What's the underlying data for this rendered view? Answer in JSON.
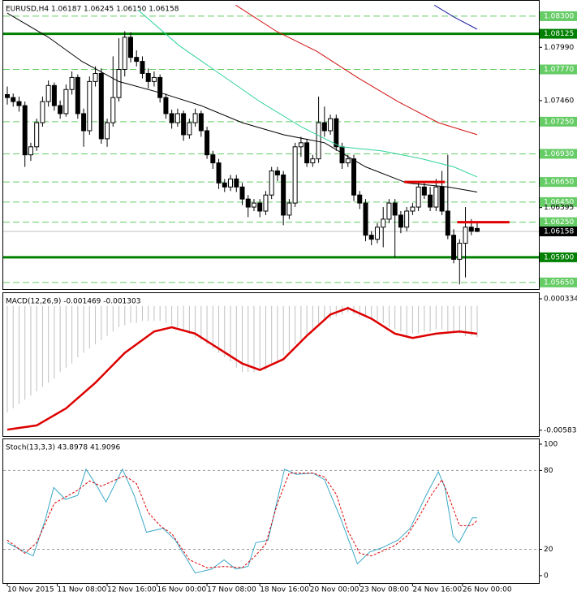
{
  "chart_data": [
    {
      "type": "candlestick",
      "title": "EURUSD,H4  1.06187 1.06245 1.06150 1.06158",
      "xlim": [
        -0.69,
        90.5
      ],
      "ylim": [
        1.05584,
        1.08453
      ],
      "candles": [
        [
          1.0752,
          1.076,
          1.0742,
          1.0749
        ],
        [
          1.0749,
          1.0753,
          1.074,
          1.0745
        ],
        [
          1.0745,
          1.075,
          1.0735,
          1.0741
        ],
        [
          1.0741,
          1.0745,
          1.068,
          1.0692
        ],
        [
          1.0692,
          1.0704,
          1.0686,
          1.07
        ],
        [
          1.07,
          1.0728,
          1.0696,
          1.0724
        ],
        [
          1.0724,
          1.075,
          1.072,
          1.0745
        ],
        [
          1.0745,
          1.0766,
          1.074,
          1.0761
        ],
        [
          1.0761,
          1.0764,
          1.0736,
          1.0741
        ],
        [
          1.0741,
          1.0746,
          1.0728,
          1.0733
        ],
        [
          1.0733,
          1.0762,
          1.073,
          1.0757
        ],
        [
          1.0757,
          1.0775,
          1.0752,
          1.0769
        ],
        [
          1.0769,
          1.0772,
          1.0728,
          1.0733
        ],
        [
          1.0733,
          1.0738,
          1.07,
          1.0716
        ],
        [
          1.0716,
          1.077,
          1.0712,
          1.0765
        ],
        [
          1.0765,
          1.078,
          1.076,
          1.0773
        ],
        [
          1.0773,
          1.0778,
          1.0703,
          1.0708
        ],
        [
          1.0708,
          1.0728,
          1.07,
          1.0724
        ],
        [
          1.0724,
          1.079,
          1.072,
          1.0749
        ],
        [
          1.0749,
          1.0808,
          1.0745,
          1.0777
        ],
        [
          1.0777,
          1.0815,
          1.077,
          1.0809
        ],
        [
          1.0809,
          1.0814,
          1.0784,
          1.0789
        ],
        [
          1.0789,
          1.0796,
          1.078,
          1.0785
        ],
        [
          1.0785,
          1.079,
          1.0768,
          1.0773
        ],
        [
          1.0773,
          1.0778,
          1.0758,
          1.0765
        ],
        [
          1.0765,
          1.0775,
          1.076,
          1.0769
        ],
        [
          1.0769,
          1.0772,
          1.0744,
          1.0749
        ],
        [
          1.0749,
          1.0753,
          1.0728,
          1.0733
        ],
        [
          1.0733,
          1.0737,
          1.0718,
          1.0724
        ],
        [
          1.0724,
          1.0738,
          1.072,
          1.0733
        ],
        [
          1.0733,
          1.0736,
          1.0706,
          1.0712
        ],
        [
          1.0712,
          1.0728,
          1.0708,
          1.0724
        ],
        [
          1.0724,
          1.0738,
          1.072,
          1.0733
        ],
        [
          1.0733,
          1.0736,
          1.071,
          1.0716
        ],
        [
          1.0716,
          1.072,
          1.0688,
          1.0692
        ],
        [
          1.0692,
          1.0696,
          1.0678,
          1.0684
        ],
        [
          1.0684,
          1.0688,
          1.0658,
          1.0664
        ],
        [
          1.0664,
          1.0668,
          1.0655,
          1.066
        ],
        [
          1.066,
          1.0672,
          1.0656,
          1.0668
        ],
        [
          1.0668,
          1.0672,
          1.0655,
          1.066
        ],
        [
          1.066,
          1.0664,
          1.0642,
          1.0648
        ],
        [
          1.0648,
          1.0652,
          1.063,
          1.064
        ],
        [
          1.064,
          1.0648,
          1.0636,
          1.0644
        ],
        [
          1.0644,
          1.0648,
          1.063,
          1.0636
        ],
        [
          1.0636,
          1.0656,
          1.0632,
          1.0652
        ],
        [
          1.0652,
          1.068,
          1.0648,
          1.0676
        ],
        [
          1.0676,
          1.068,
          1.0666,
          1.0672
        ],
        [
          1.0672,
          1.0676,
          1.0622,
          1.0632
        ],
        [
          1.0632,
          1.0648,
          1.0628,
          1.0644
        ],
        [
          1.0644,
          1.0704,
          1.064,
          1.07
        ],
        [
          1.07,
          1.071,
          1.069,
          1.0704
        ],
        [
          1.0704,
          1.0708,
          1.068,
          1.0684
        ],
        [
          1.0684,
          1.0692,
          1.068,
          1.0688
        ],
        [
          1.0688,
          1.075,
          1.0684,
          1.0724
        ],
        [
          1.0724,
          1.074,
          1.071,
          1.0716
        ],
        [
          1.0716,
          1.0732,
          1.0712,
          1.0728
        ],
        [
          1.0728,
          1.0732,
          1.0696,
          1.07
        ],
        [
          1.07,
          1.0704,
          1.0678,
          1.0684
        ],
        [
          1.0684,
          1.0692,
          1.068,
          1.0688
        ],
        [
          1.0688,
          1.0692,
          1.0646,
          1.0652
        ],
        [
          1.0652,
          1.0656,
          1.0638,
          1.0644
        ],
        [
          1.0644,
          1.0648,
          1.0606,
          1.0612
        ],
        [
          1.0612,
          1.0616,
          1.0602,
          1.0608
        ],
        [
          1.0608,
          1.0624,
          1.0604,
          1.062
        ],
        [
          1.062,
          1.064,
          1.06,
          1.0628
        ],
        [
          1.0628,
          1.0648,
          1.0624,
          1.0644
        ],
        [
          1.0644,
          1.0648,
          1.059,
          1.0632
        ],
        [
          1.0632,
          1.0636,
          1.0614,
          1.062
        ],
        [
          1.062,
          1.064,
          1.0616,
          1.0636
        ],
        [
          1.0636,
          1.0644,
          1.0632,
          1.064
        ],
        [
          1.064,
          1.0664,
          1.0636,
          1.066
        ],
        [
          1.066,
          1.0666,
          1.0648,
          1.0652
        ],
        [
          1.0652,
          1.066,
          1.0636,
          1.064
        ],
        [
          1.064,
          1.0668,
          1.0636,
          1.066
        ],
        [
          1.066,
          1.0676,
          1.0632,
          1.0636
        ],
        [
          1.0636,
          1.0692,
          1.0608,
          1.0612
        ],
        [
          1.0612,
          1.0618,
          1.0584,
          1.0588
        ],
        [
          1.0588,
          1.0608,
          1.0563,
          1.0604
        ],
        [
          1.0604,
          1.064,
          1.057,
          1.062
        ],
        [
          1.062,
          1.0628,
          1.0612,
          1.0616
        ],
        [
          1.06187,
          1.06245,
          1.0615,
          1.06158
        ]
      ],
      "series": [
        {
          "type": "line",
          "color": "#000000",
          "x": [
            0,
            7,
            12.7,
            19,
            26.5,
            33,
            40,
            47,
            54,
            61,
            68,
            75,
            80
          ],
          "y": [
            1.0833,
            1.0809,
            1.0785,
            1.0765,
            1.0753,
            1.0741,
            1.0724,
            1.0712,
            1.0704,
            1.068,
            1.0664,
            1.066,
            1.0655
          ]
        },
        {
          "type": "line",
          "color": "#2fd39a",
          "x": [
            22.3,
            29.2,
            36.1,
            43,
            50,
            56.8,
            63.7,
            70.6,
            76,
            80
          ],
          "y": [
            1.0836,
            1.0801,
            1.0773,
            1.0745,
            1.072,
            1.07,
            1.0696,
            1.0688,
            1.068,
            1.067
          ]
        },
        {
          "type": "line",
          "color": "#d01010",
          "x": [
            38.9,
            45.8,
            52.7,
            59.6,
            66.5,
            73.4,
            80
          ],
          "y": [
            1.0841,
            1.0815,
            1.0795,
            1.0769,
            1.0745,
            1.0724,
            1.0712
          ]
        },
        {
          "type": "line",
          "color": "#1a1aa0",
          "x": [
            72.7,
            76.1,
            80
          ],
          "y": [
            1.0841,
            1.0829,
            1.0817
          ]
        }
      ],
      "segments": [
        {
          "color": "#e00000",
          "value": 1.0665,
          "x": [
            67.6,
            74.5
          ]
        },
        {
          "color": "#e00000",
          "value": 1.0625,
          "x": [
            76.6,
            85.5
          ]
        }
      ],
      "yticks": [
        {
          "value": 1.0799,
          "label": "1.07990"
        },
        {
          "value": 1.0746,
          "label": "1.07460"
        },
        1.06395
      ],
      "levels": [
        {
          "value": 1.083,
          "label": "1.08300",
          "style": "dashed",
          "color": "#66cc66"
        },
        {
          "value": 1.08125,
          "label": "1.08125",
          "style": "thick",
          "color": "#008000"
        },
        {
          "value": 1.0777,
          "label": "1.07770",
          "style": "dashed",
          "color": "#66cc66"
        },
        {
          "value": 1.0725,
          "label": "1.07250",
          "style": "dashed",
          "color": "#66cc66"
        },
        {
          "value": 1.0693,
          "label": "1.06930",
          "style": "dashed",
          "color": "#66cc66"
        },
        {
          "value": 1.0665,
          "label": "1.06650",
          "style": "dashed",
          "color": "#66cc66"
        },
        {
          "value": 1.0645,
          "label": "1.06450",
          "style": "dashed",
          "color": "#66cc66"
        },
        {
          "value": 1.0625,
          "label": "1.06250",
          "style": "dashed",
          "color": "#66cc66"
        },
        {
          "value": 1.059,
          "label": "1.05900",
          "style": "thick",
          "color": "#008000"
        },
        {
          "value": 1.0565,
          "label": "1.05650",
          "style": "dashed",
          "color": "#66cc66"
        }
      ],
      "current": 1.06158
    },
    {
      "type": "bar",
      "title": "MACD(12,26,9) -0.001469 -0.001303",
      "xlim": [
        -0.69,
        90.5
      ],
      "ylim": [
        -0.0061,
        0.0006
      ],
      "yticks": [
        0.000334,
        -0.00583
      ],
      "series": [
        {
          "type": "bar",
          "color": "#c0c0c0",
          "values": [
            -0.005,
            -0.0048,
            -0.0046,
            -0.0044,
            -0.0042,
            -0.004,
            -0.0038,
            -0.0036,
            -0.0034,
            -0.0031,
            -0.0029,
            -0.0027,
            -0.0024,
            -0.0022,
            -0.002,
            -0.0018,
            -0.0016,
            -0.0014,
            -0.0012,
            -0.001,
            -0.0009,
            -0.0008,
            -0.0008,
            -0.0007,
            -0.0007,
            -0.0007,
            -0.0007,
            -0.0008,
            -0.0009,
            -0.001,
            -0.0012,
            -0.0013,
            -0.0015,
            -0.0016,
            -0.0018,
            -0.002,
            -0.0022,
            -0.0024,
            -0.0026,
            -0.0029,
            -0.0031,
            -0.0031,
            -0.0031,
            -0.003,
            -0.003,
            -0.0028,
            -0.0026,
            -0.0023,
            -0.0021,
            -0.0018,
            -0.0016,
            -0.0014,
            -0.0011,
            -0.0009,
            -0.0007,
            -0.0006,
            -0.0005,
            -0.0004,
            -0.0003,
            -0.0004,
            -0.0005,
            -0.0005,
            -0.0006,
            -0.0007,
            -0.0008,
            -0.001,
            -0.0011,
            -0.0012,
            -0.0014,
            -0.0013,
            -0.0013,
            -0.0012,
            -0.0012,
            -0.0011,
            -0.0011,
            -0.0012,
            -0.0012,
            -0.0013,
            -0.0014,
            -0.0014,
            -0.001469
          ]
        },
        {
          "type": "line",
          "color": "#dd0000",
          "width": 2.5,
          "x": [
            0,
            5,
            10,
            15,
            20,
            25,
            28,
            32,
            36,
            40,
            43,
            47,
            51,
            55,
            58,
            62,
            66,
            69,
            73,
            77,
            80
          ],
          "y": [
            -0.0058,
            -0.0056,
            -0.0048,
            -0.0036,
            -0.0022,
            -0.0012,
            -0.001,
            -0.0013,
            -0.002,
            -0.0027,
            -0.003,
            -0.0025,
            -0.0014,
            -0.0004,
            -0.0001,
            -0.0006,
            -0.0013,
            -0.0015,
            -0.0013,
            -0.0012,
            -0.001303
          ]
        }
      ]
    },
    {
      "type": "line",
      "title": "Stoch(13,3,3) 43.8978 41.9096",
      "xlim": [
        -0.69,
        90.5
      ],
      "ylim": [
        -5.6,
        103.7
      ],
      "yticks": [
        100,
        80,
        20,
        0
      ],
      "levels": [
        80,
        20
      ],
      "series": [
        {
          "type": "line",
          "color": "#3aa8c8",
          "x": [
            0,
            1.7,
            4.4,
            6.5,
            7.9,
            9.9,
            12,
            13.4,
            15.4,
            16.8,
            19.6,
            21.6,
            23.7,
            26.5,
            28.6,
            32,
            34.8,
            36.9,
            38.9,
            41,
            42.3,
            44.4,
            47.2,
            49.2,
            52,
            54,
            56.8,
            59.6,
            61.7,
            63.7,
            66.5,
            68.6,
            71.3,
            73.4,
            74.5,
            75.9,
            76.9,
            78.2,
            79.2,
            80
          ],
          "y": [
            25,
            21,
            15,
            43,
            67,
            58,
            61,
            81,
            67,
            56,
            81,
            61,
            33,
            36,
            27,
            2,
            5,
            12,
            5,
            7,
            25,
            27,
            81,
            77,
            78,
            73,
            43,
            9,
            18,
            21,
            27,
            36,
            61,
            79,
            67,
            30,
            25,
            36,
            44,
            43.8978
          ]
        },
        {
          "type": "line",
          "color": "#dd0000",
          "dash": "3,2",
          "x": [
            0,
            3,
            5,
            8,
            10,
            12,
            14,
            16,
            18,
            20,
            22,
            24,
            26,
            28,
            31,
            34,
            37,
            40,
            42,
            44,
            46,
            48,
            50,
            52,
            54,
            56,
            58,
            60,
            62,
            64,
            66,
            68,
            70,
            72,
            74,
            75,
            77,
            79,
            80
          ],
          "y": [
            27,
            17,
            25,
            55,
            60,
            65,
            72,
            68,
            72,
            76,
            70,
            48,
            38,
            32,
            12,
            6,
            7,
            6,
            14,
            24,
            55,
            78,
            78,
            78,
            75,
            62,
            34,
            17,
            15,
            19,
            23,
            30,
            44,
            60,
            73,
            62,
            38,
            38,
            41.9096
          ]
        }
      ],
      "xticks": [
        {
          "value": 0,
          "label": "10 Nov 2015"
        },
        {
          "value": 8.5,
          "label": "11 Nov 08:00"
        },
        {
          "value": 17,
          "label": "12 Nov 16:00"
        },
        {
          "value": 25.5,
          "label": "16 Nov 00:00"
        },
        {
          "value": 34,
          "label": "17 Nov 08:00"
        },
        {
          "value": 43,
          "label": "18 Nov 16:00"
        },
        {
          "value": 51.5,
          "label": "20 Nov 00:00"
        },
        {
          "value": 60,
          "label": "23 Nov 08:00"
        },
        {
          "value": 69,
          "label": "24 Nov 16:00"
        },
        {
          "value": 77.5,
          "label": "26 Nov 00:00"
        }
      ]
    }
  ]
}
